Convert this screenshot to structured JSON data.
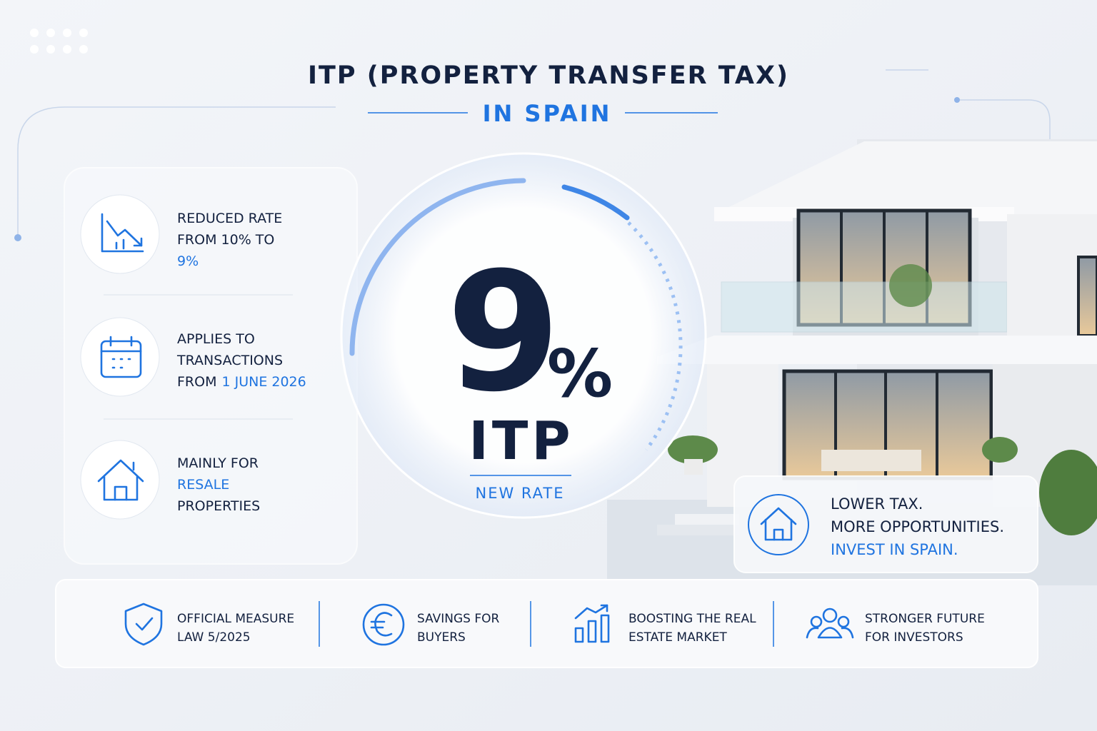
{
  "header": {
    "title": "ITP (PROPERTY TRANSFER TAX)",
    "subtitle": "IN SPAIN"
  },
  "features": [
    {
      "lines": [
        [
          {
            "text": "REDUCED RATE"
          }
        ],
        [
          {
            "text": "FROM 10% TO"
          }
        ],
        [
          {
            "text": "9%",
            "accent": true
          }
        ]
      ]
    },
    {
      "lines": [
        [
          {
            "text": "APPLIES TO"
          }
        ],
        [
          {
            "text": "TRANSACTIONS"
          }
        ],
        [
          {
            "text": "FROM"
          },
          {
            "text": "1 JUNE 2026",
            "accent": true
          }
        ]
      ]
    },
    {
      "lines": [
        [
          {
            "text": "MAINLY FOR"
          }
        ],
        [
          {
            "text": "RESALE",
            "accent": true
          }
        ],
        [
          {
            "text": "PROPERTIES"
          }
        ]
      ]
    }
  ],
  "hero": {
    "rate": "9",
    "unit": "%",
    "label": "ITP",
    "caption": "NEW RATE"
  },
  "callout": {
    "lines": [
      {
        "text": "LOWER TAX."
      },
      {
        "text": "MORE OPPORTUNITIES."
      },
      {
        "text": "INVEST IN SPAIN.",
        "accent": true
      }
    ]
  },
  "footer": [
    {
      "title": "OFFICIAL MEASURE",
      "subtitle": "LAW 5/2025"
    },
    {
      "title": "SAVINGS FOR",
      "subtitle": "BUYERS"
    },
    {
      "title": "BOOSTING THE REAL",
      "subtitle": "ESTATE MARKET"
    },
    {
      "title": "STRONGER FUTURE",
      "subtitle": "FOR INVESTORS"
    }
  ]
}
